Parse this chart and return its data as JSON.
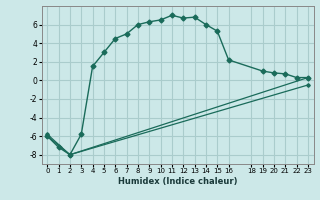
{
  "xlabel": "Humidex (Indice chaleur)",
  "background_color": "#cce8e8",
  "grid_color": "#aacccc",
  "line_color": "#1a6b5a",
  "xlim": [
    -0.5,
    23.5
  ],
  "ylim": [
    -9,
    8
  ],
  "xticks": [
    0,
    1,
    2,
    3,
    4,
    5,
    6,
    7,
    8,
    9,
    10,
    11,
    12,
    13,
    14,
    15,
    16,
    18,
    19,
    20,
    21,
    22,
    23
  ],
  "yticks": [
    -8,
    -6,
    -4,
    -2,
    0,
    2,
    4,
    6
  ],
  "series1_x": [
    0,
    1,
    2,
    3,
    4,
    5,
    6,
    7,
    8,
    9,
    10,
    11,
    12,
    13,
    14,
    15,
    16,
    19,
    20,
    21,
    22,
    23
  ],
  "series1_y": [
    -6.0,
    -7.2,
    -8.0,
    -5.8,
    1.5,
    3.0,
    4.5,
    5.0,
    6.0,
    6.3,
    6.5,
    7.0,
    6.7,
    6.8,
    6.0,
    5.3,
    2.2,
    1.0,
    0.8,
    0.7,
    0.3,
    0.3
  ],
  "series2_x": [
    0,
    2,
    23
  ],
  "series2_y": [
    -6.0,
    -8.0,
    0.3
  ],
  "series3_x": [
    0,
    2,
    23
  ],
  "series3_y": [
    -5.8,
    -8.0,
    -0.5
  ]
}
